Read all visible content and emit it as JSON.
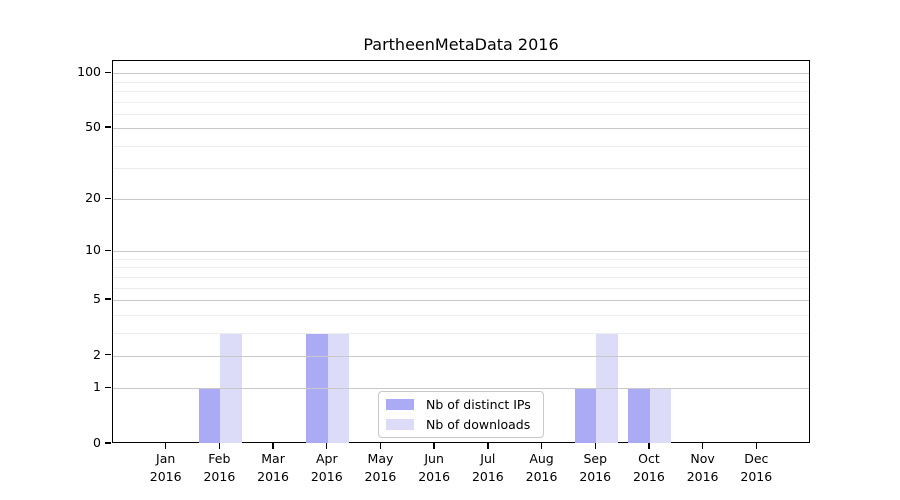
{
  "chart_data": {
    "type": "bar",
    "title": "PartheenMetaData 2016",
    "categories": [
      "Jan",
      "Feb",
      "Mar",
      "Apr",
      "May",
      "Jun",
      "Jul",
      "Aug",
      "Sep",
      "Oct",
      "Nov",
      "Dec"
    ],
    "x_year_label": "2016",
    "series": [
      {
        "name": "Nb of distinct IPs",
        "color": "#ababf5",
        "values": [
          0,
          1,
          0,
          3,
          0,
          0,
          0,
          0,
          1,
          1,
          0,
          0
        ]
      },
      {
        "name": "Nb of downloads",
        "color": "#dcdcf8",
        "values": [
          0,
          3,
          0,
          3,
          0,
          0,
          0,
          0,
          3,
          1,
          0,
          0
        ]
      }
    ],
    "yscale": "log1p",
    "yticks": [
      0,
      1,
      2,
      5,
      10,
      20,
      50,
      100
    ],
    "minor_gridlines": [
      3,
      4,
      6,
      7,
      8,
      9,
      30,
      40,
      60,
      70,
      80,
      90
    ],
    "ylim": [
      0,
      116
    ],
    "grid": "horizontal major+minor, drawn above bars",
    "legend_position": "lower center",
    "colors": {
      "axis": "#000000",
      "grid_major": "#c9c9c9",
      "grid_minor": "#ededed",
      "legend_border": "#c8c8c8",
      "background": "#ffffff",
      "text": "#000000"
    }
  }
}
